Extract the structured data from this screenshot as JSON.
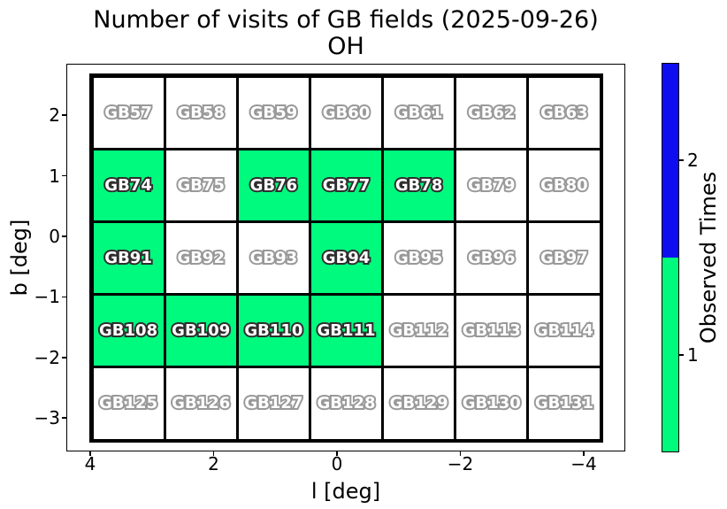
{
  "chart_data": {
    "type": "heatmap",
    "title": "Number of visits of GB fields (2025-09-26)",
    "subtitle": "OH",
    "xlabel": "l [deg]",
    "ylabel": "b [deg]",
    "x_ticks": [
      "4",
      "2",
      "0",
      "−2",
      "−4"
    ],
    "y_ticks": [
      "2",
      "1",
      "0",
      "−1",
      "−2",
      "−3"
    ],
    "x_axis_reversed": true,
    "grid": {
      "rows": 5,
      "cols": 7
    },
    "visit_colors": {
      "0": "#ffffff",
      "1": "#00fa7e",
      "2": "#0d0df0"
    },
    "rows": [
      {
        "cells": [
          {
            "field": "GB57",
            "visits": 0
          },
          {
            "field": "GB58",
            "visits": 0
          },
          {
            "field": "GB59",
            "visits": 0
          },
          {
            "field": "GB60",
            "visits": 0
          },
          {
            "field": "GB61",
            "visits": 0
          },
          {
            "field": "GB62",
            "visits": 0
          },
          {
            "field": "GB63",
            "visits": 0
          }
        ]
      },
      {
        "cells": [
          {
            "field": "GB74",
            "visits": 1
          },
          {
            "field": "GB75",
            "visits": 0
          },
          {
            "field": "GB76",
            "visits": 1
          },
          {
            "field": "GB77",
            "visits": 1
          },
          {
            "field": "GB78",
            "visits": 1
          },
          {
            "field": "GB79",
            "visits": 0
          },
          {
            "field": "GB80",
            "visits": 0
          }
        ]
      },
      {
        "cells": [
          {
            "field": "GB91",
            "visits": 1
          },
          {
            "field": "GB92",
            "visits": 0
          },
          {
            "field": "GB93",
            "visits": 0
          },
          {
            "field": "GB94",
            "visits": 1
          },
          {
            "field": "GB95",
            "visits": 0
          },
          {
            "field": "GB96",
            "visits": 0
          },
          {
            "field": "GB97",
            "visits": 0
          }
        ]
      },
      {
        "cells": [
          {
            "field": "GB108",
            "visits": 1
          },
          {
            "field": "GB109",
            "visits": 1
          },
          {
            "field": "GB110",
            "visits": 1
          },
          {
            "field": "GB111",
            "visits": 1
          },
          {
            "field": "GB112",
            "visits": 0
          },
          {
            "field": "GB113",
            "visits": 0
          },
          {
            "field": "GB114",
            "visits": 0
          }
        ]
      },
      {
        "cells": [
          {
            "field": "GB125",
            "visits": 0
          },
          {
            "field": "GB126",
            "visits": 0
          },
          {
            "field": "GB127",
            "visits": 0
          },
          {
            "field": "GB128",
            "visits": 0
          },
          {
            "field": "GB129",
            "visits": 0
          },
          {
            "field": "GB130",
            "visits": 0
          },
          {
            "field": "GB131",
            "visits": 0
          }
        ]
      }
    ],
    "colorbar": {
      "label": "Observed Times",
      "segments": [
        {
          "value": 2,
          "tick_label": "2",
          "color": "#0d0df0"
        },
        {
          "value": 1,
          "tick_label": "1",
          "color": "#00fa7e"
        }
      ],
      "legend_position": "right"
    }
  }
}
